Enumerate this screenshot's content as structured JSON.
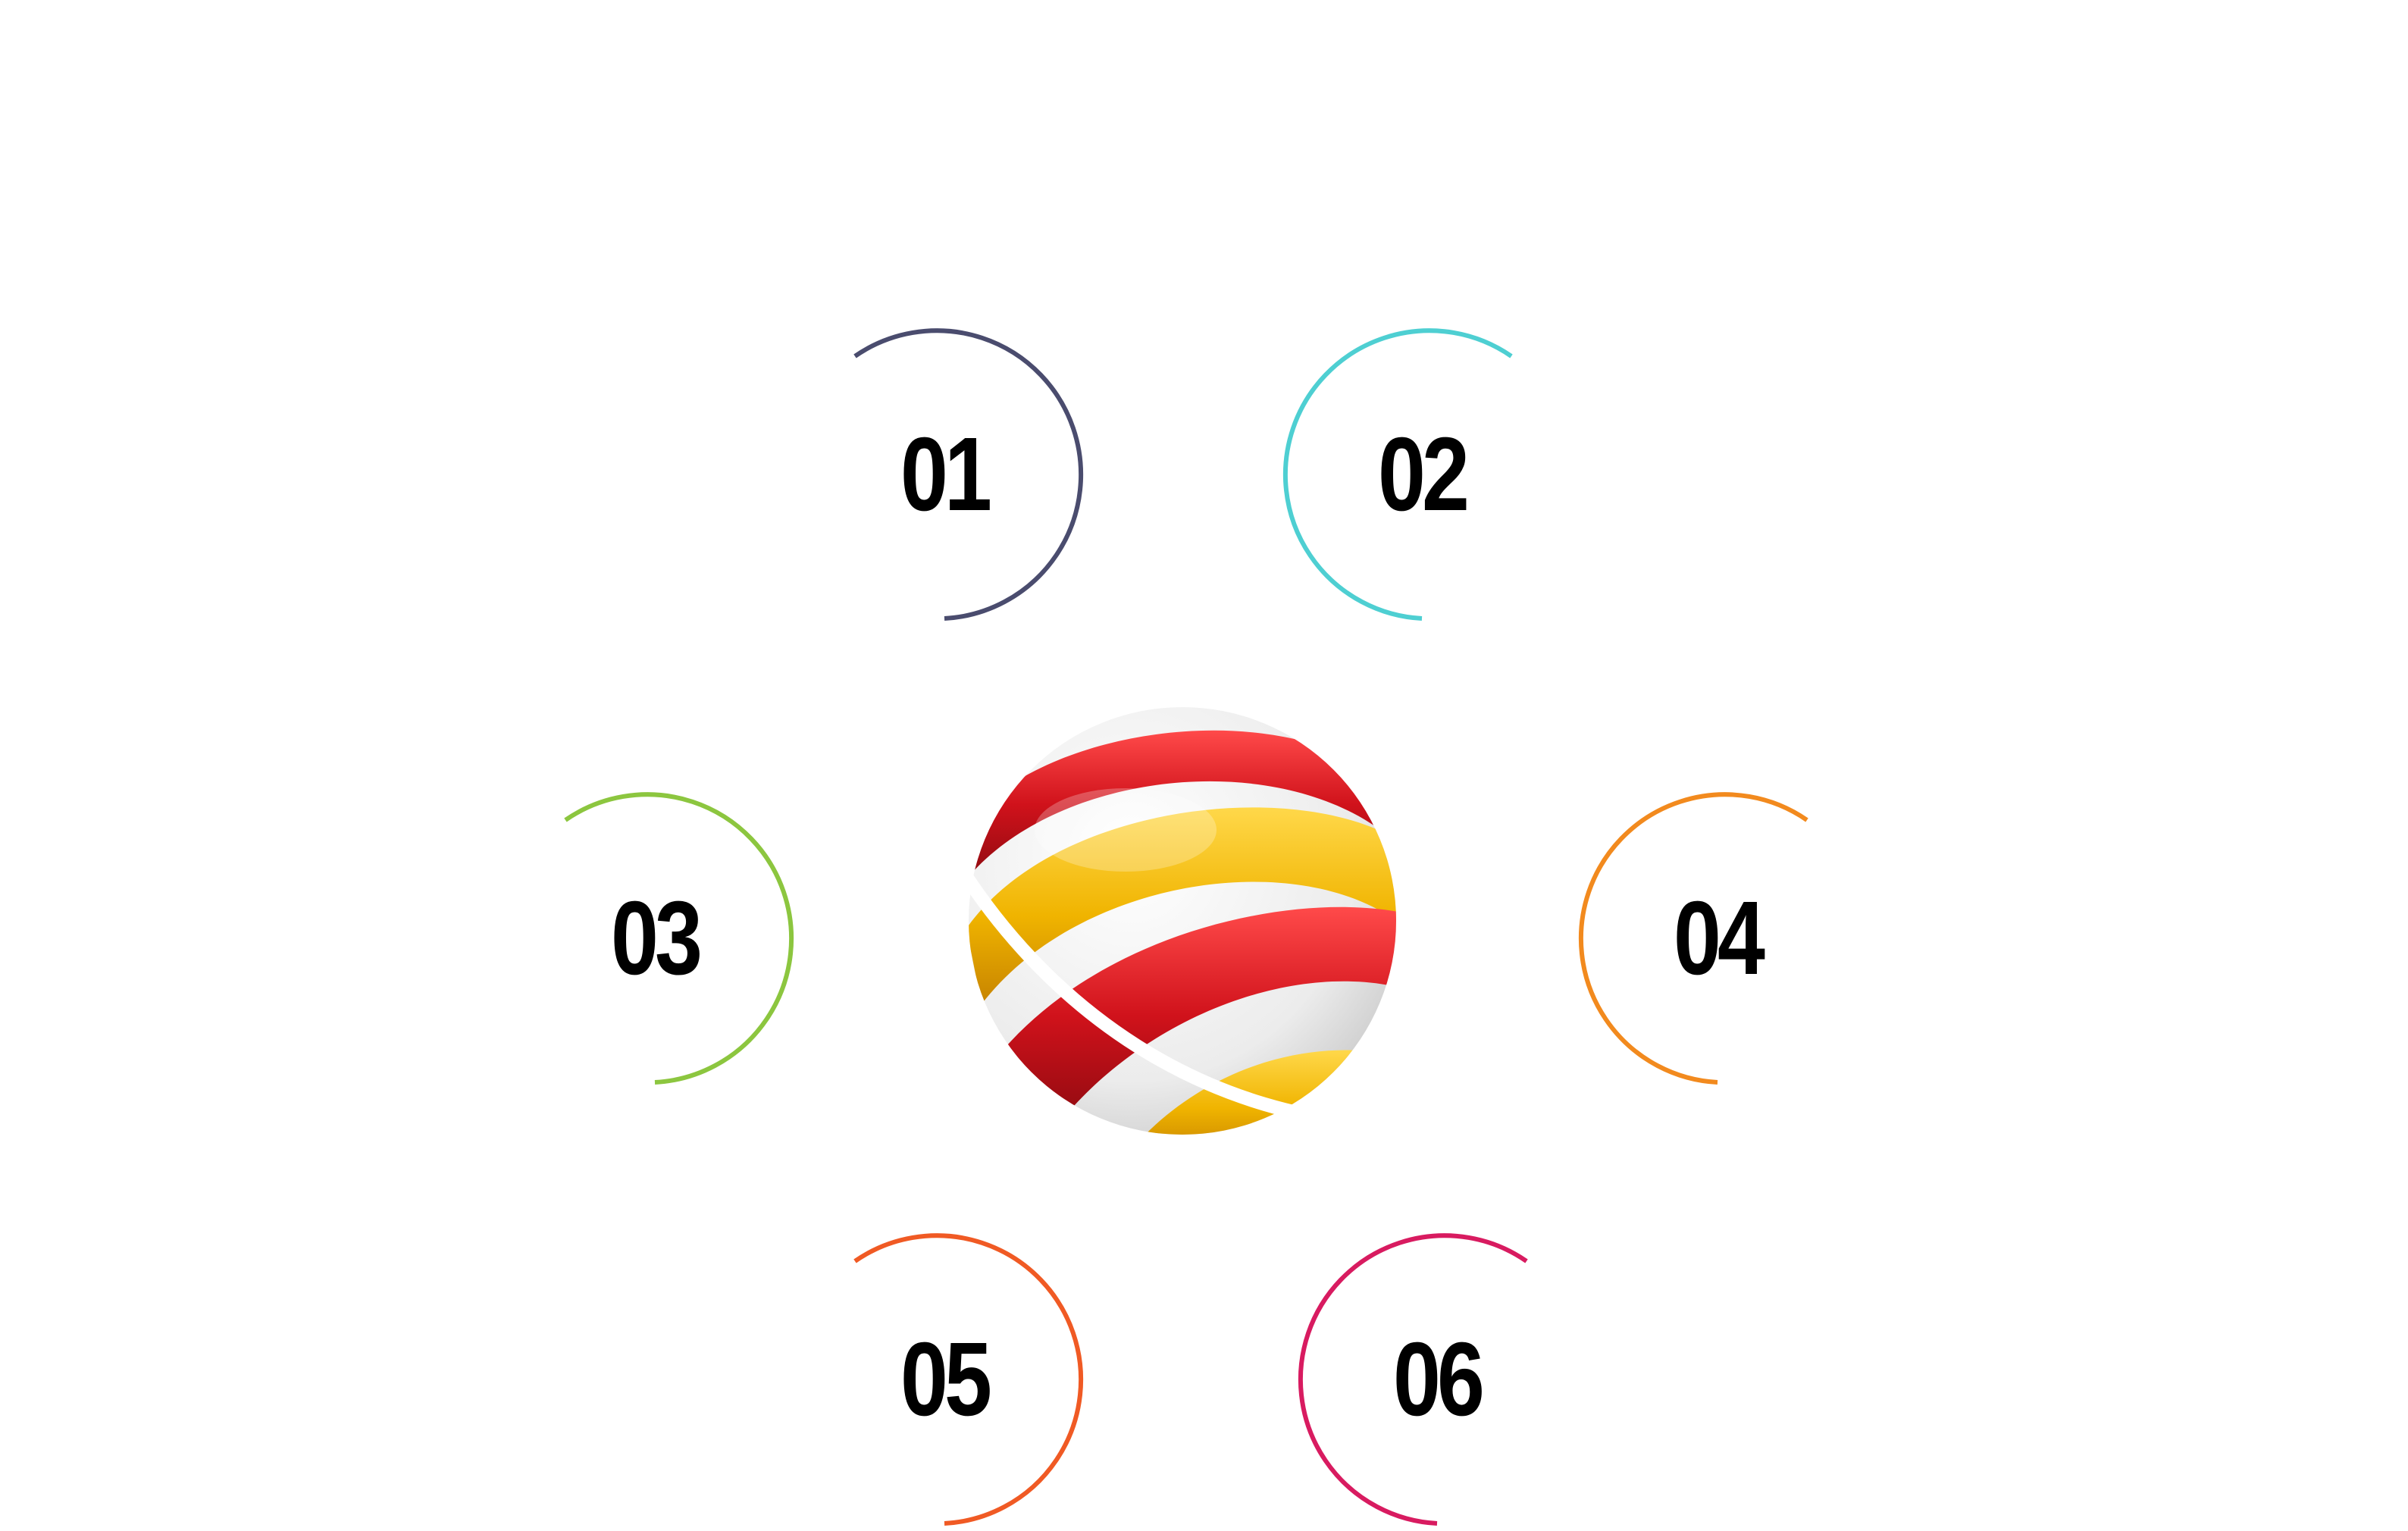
{
  "diagram": {
    "center_graphic": {
      "icon": "striped-globe-icon",
      "colors": {
        "red": "#d0121b",
        "yellow": "#f0b400",
        "white": "#f4f4f4"
      }
    },
    "nodes": [
      {
        "label": "01",
        "color": "#4a4c6e"
      },
      {
        "label": "02",
        "color": "#4ecfd2"
      },
      {
        "label": "03",
        "color": "#8cc63f"
      },
      {
        "label": "04",
        "color": "#f28a1e"
      },
      {
        "label": "05",
        "color": "#f05a24"
      },
      {
        "label": "06",
        "color": "#d81b60"
      }
    ]
  }
}
